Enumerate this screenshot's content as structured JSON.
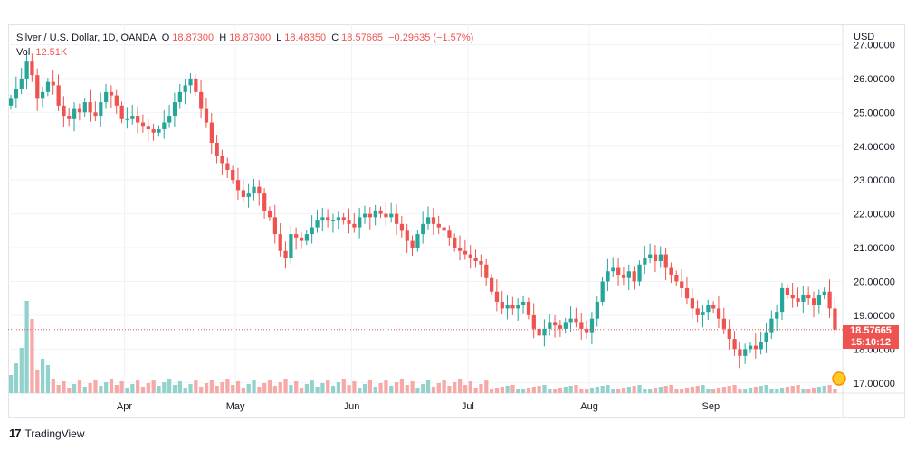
{
  "legend": {
    "symbol": "Silver / U.S. Dollar, 1D, OANDA",
    "open_label": "O",
    "open": "18.87300",
    "high_label": "H",
    "high": "18.87300",
    "low_label": "L",
    "low": "18.48350",
    "close_label": "C",
    "close": "18.57665",
    "change": "−0.29635 (−1.57%)",
    "vol_label": "Vol",
    "vol": "12.51K"
  },
  "price_label": {
    "price": "18.57665",
    "countdown": "15:10:12"
  },
  "footer": {
    "brand": "TradingView"
  },
  "colors": {
    "up": "#26a69a",
    "down": "#ef5350",
    "up_vol": "#92d2cc",
    "down_vol": "#f7a9a7"
  },
  "chart_data": {
    "type": "candlestick",
    "currency": "USD",
    "y_ticks": [
      "27.00000",
      "26.00000",
      "25.00000",
      "24.00000",
      "23.00000",
      "22.00000",
      "21.00000",
      "20.00000",
      "19.00000",
      "18.00000",
      "17.00000"
    ],
    "ylim": [
      16.7,
      27.6
    ],
    "x_ticks": [
      "Apr",
      "May",
      "Jun",
      "Jul",
      "Aug",
      "Sep"
    ],
    "last_price": 18.57665,
    "closes": [
      25.4,
      25.7,
      26.0,
      26.5,
      26.1,
      25.4,
      25.6,
      25.9,
      25.8,
      25.2,
      24.9,
      24.8,
      25.1,
      25.0,
      25.3,
      25.0,
      24.9,
      25.3,
      25.6,
      25.5,
      25.2,
      24.8,
      24.8,
      24.9,
      24.7,
      24.6,
      24.5,
      24.4,
      24.5,
      24.7,
      24.9,
      25.3,
      25.6,
      25.8,
      26.0,
      25.6,
      25.1,
      24.7,
      24.1,
      23.7,
      23.5,
      23.3,
      23.0,
      22.7,
      22.5,
      22.6,
      22.8,
      22.6,
      22.1,
      21.9,
      21.4,
      20.9,
      20.7,
      21.4,
      21.3,
      21.2,
      21.4,
      21.6,
      21.8,
      21.9,
      21.8,
      21.8,
      21.9,
      21.8,
      21.7,
      21.6,
      21.9,
      22.0,
      21.9,
      22.1,
      22.0,
      21.9,
      22.0,
      21.7,
      21.5,
      21.2,
      21.0,
      21.4,
      21.7,
      21.9,
      21.7,
      21.6,
      21.5,
      21.3,
      21.0,
      20.9,
      20.8,
      20.7,
      20.6,
      20.5,
      20.1,
      19.7,
      19.4,
      19.2,
      19.3,
      19.2,
      19.3,
      19.4,
      19.0,
      18.6,
      18.4,
      18.6,
      18.8,
      18.7,
      18.6,
      18.8,
      18.9,
      18.8,
      18.6,
      18.5,
      18.9,
      19.4,
      20.0,
      20.3,
      20.4,
      20.2,
      20.1,
      20.3,
      20.0,
      20.5,
      20.7,
      20.8,
      20.6,
      20.8,
      20.4,
      20.2,
      20.0,
      19.8,
      19.5,
      19.2,
      19.0,
      19.1,
      19.3,
      19.2,
      18.9,
      18.6,
      18.3,
      18.0,
      17.8,
      18.0,
      18.1,
      18.0,
      18.2,
      18.5,
      18.9,
      19.1,
      19.8,
      19.6,
      19.5,
      19.4,
      19.6,
      19.5,
      19.3,
      19.6,
      19.7,
      19.2,
      18.577
    ]
  }
}
